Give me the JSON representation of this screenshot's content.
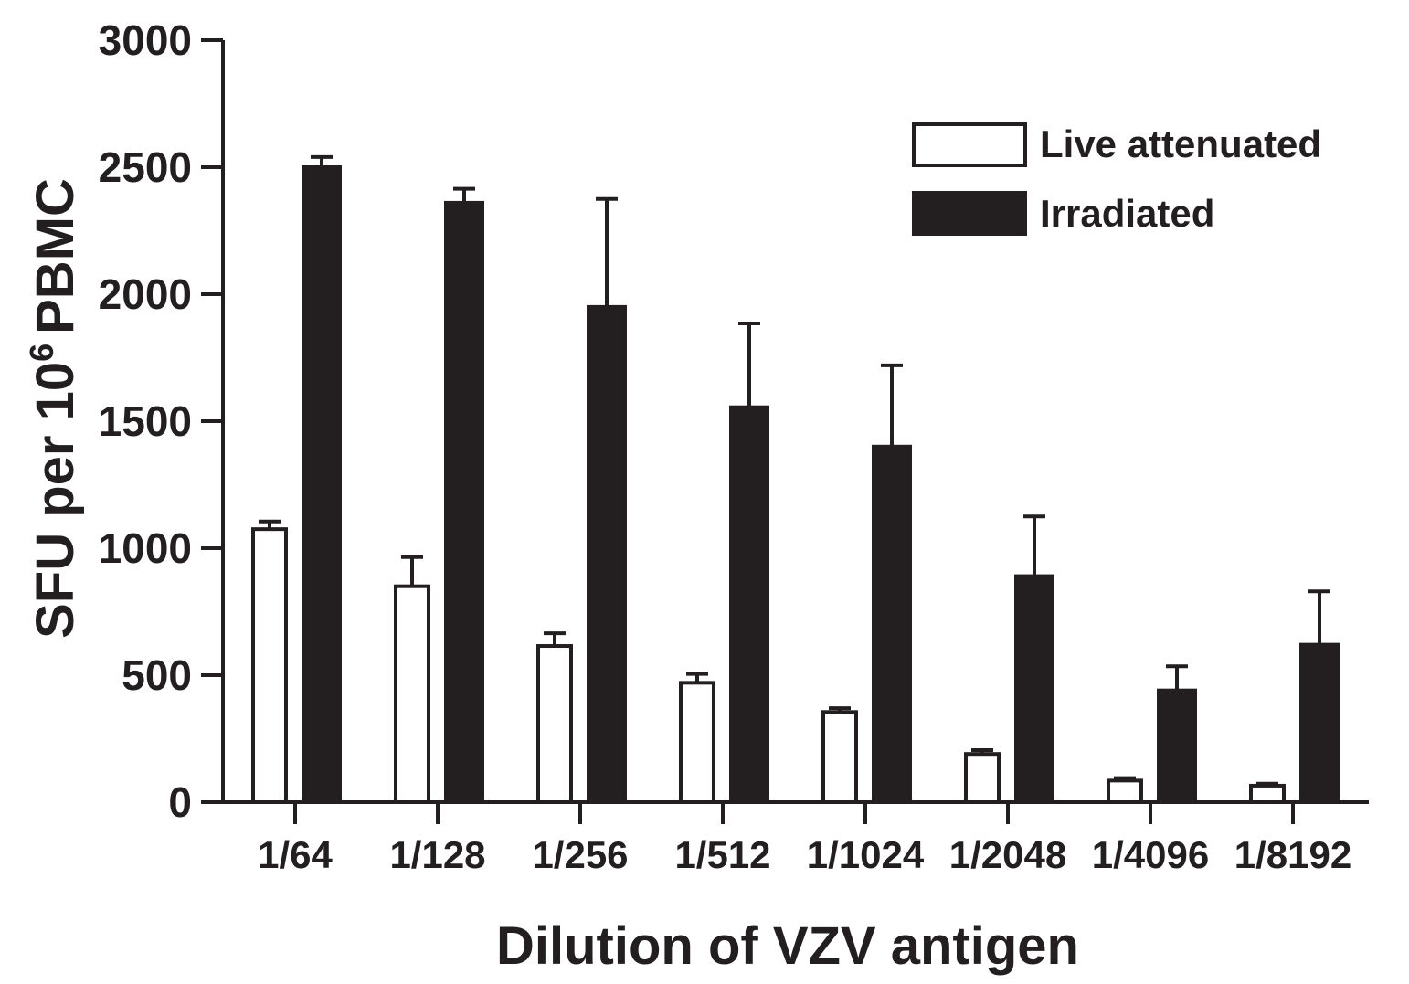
{
  "chart_data": {
    "type": "bar",
    "title": "",
    "xlabel": "Dilution of VZV antigen",
    "ylabel_main": "SFU per 10",
    "ylabel_superscript": "6",
    "ylabel_tail": "PBMC",
    "ylim": [
      0,
      3000
    ],
    "yticks": [
      0,
      500,
      1000,
      1500,
      2000,
      2500,
      3000
    ],
    "categories": [
      "1/64",
      "1/128",
      "1/256",
      "1/512",
      "1/1024",
      "1/2048",
      "1/4096",
      "1/8192"
    ],
    "series": [
      {
        "name": "Live attenuated",
        "fill": "#ffffff",
        "stroke": "#231f20",
        "values": [
          1075,
          850,
          615,
          470,
          355,
          190,
          85,
          65
        ],
        "errors": [
          30,
          115,
          50,
          35,
          15,
          15,
          10,
          8
        ]
      },
      {
        "name": "Irradiated",
        "fill": "#231f20",
        "stroke": "#231f20",
        "values": [
          2500,
          2360,
          1950,
          1555,
          1400,
          890,
          440,
          620
        ],
        "errors": [
          40,
          55,
          425,
          330,
          320,
          235,
          95,
          210
        ]
      }
    ],
    "legend_position": "top-right",
    "grid": false
  }
}
